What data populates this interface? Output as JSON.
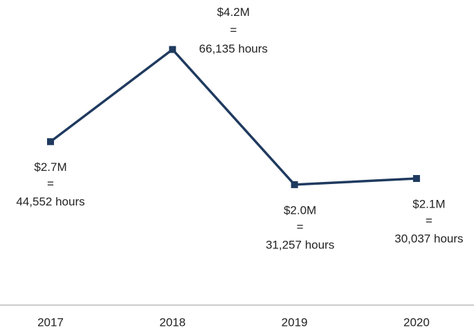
{
  "chart_data": {
    "type": "line",
    "categories": [
      "2017",
      "2018",
      "2019",
      "2020"
    ],
    "series": [
      {
        "color": "#1f3a5f",
        "values": [
          2700000,
          4200000,
          2000000,
          2100000
        ]
      }
    ],
    "value_labels": [
      "$2.7M",
      "$4.2M",
      "$2.0M",
      "$2.1M"
    ],
    "separator": "=",
    "hours": [
      44552,
      66135,
      31257,
      30037
    ],
    "hours_labels": [
      "44,552 hours",
      "66,135 hours",
      "31,257 hours",
      "30,037 hours"
    ],
    "ylim": [
      0,
      5000000
    ]
  }
}
